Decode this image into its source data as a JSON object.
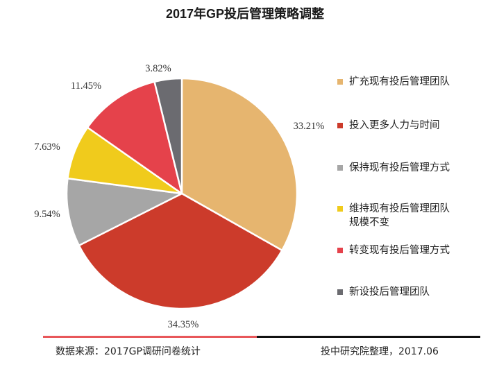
{
  "title": "2017年GP投后管理策略调整",
  "chart_data": {
    "type": "pie",
    "title": "2017年GP投后管理策略调整",
    "legend_position": "right",
    "slices": [
      {
        "label": "扩充现有投后管理团队",
        "value": 33.21,
        "display": "33.21%",
        "color": "#e6b56f"
      },
      {
        "label": "投入更多人力与时间",
        "value": 34.35,
        "display": "34.35%",
        "color": "#cc3b2b"
      },
      {
        "label": "保持现有投后管理方式",
        "value": 9.54,
        "display": "9.54%",
        "color": "#a6a6a6"
      },
      {
        "label": "维持现有投后管理团队规模不变",
        "value": 7.63,
        "display": "7.63%",
        "color": "#f0cb1c"
      },
      {
        "label": "转变现有投后管理方式",
        "value": 11.45,
        "display": "11.45%",
        "color": "#e5424b"
      },
      {
        "label": "新设投后管理团队",
        "value": 3.82,
        "display": "3.82%",
        "color": "#6b6b70"
      }
    ]
  },
  "legend": [
    {
      "lines": [
        "扩充现有投后管理团队"
      ],
      "color": "#e6b56f"
    },
    {
      "lines": [
        "投入更多人力与时间"
      ],
      "color": "#cc3b2b"
    },
    {
      "lines": [
        "保持现有投后管理方式"
      ],
      "color": "#a6a6a6"
    },
    {
      "lines": [
        "维持现有投后管理团队",
        "规模不变"
      ],
      "color": "#f0cb1c"
    },
    {
      "lines": [
        "转变现有投后管理方式"
      ],
      "color": "#e5424b"
    },
    {
      "lines": [
        "新设投后管理团队"
      ],
      "color": "#6b6b70"
    }
  ],
  "footer": {
    "source": "数据来源：2017GP调研问卷统计",
    "credit": "投中研究院整理，2017.06"
  }
}
